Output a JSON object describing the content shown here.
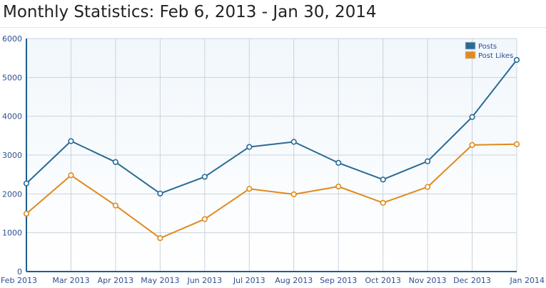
{
  "page": {
    "title": "Monthly Statistics: Feb 6, 2013 - Jan 30, 2014"
  },
  "chart_data": {
    "type": "line",
    "title": "",
    "xlabel": "",
    "ylabel": "",
    "categories": [
      "Feb 2013",
      "Mar 2013",
      "Apr 2013",
      "May 2013",
      "Jun 2013",
      "Jul 2013",
      "Aug 2013",
      "Sep 2013",
      "Oct 2013",
      "Nov 2013",
      "Dec 2013",
      "Jan 2014"
    ],
    "ylim": [
      0,
      6000
    ],
    "yticks": [
      0,
      1000,
      2000,
      3000,
      4000,
      5000,
      6000
    ],
    "grid": true,
    "legend_position": "top-right",
    "series": [
      {
        "name": "Posts",
        "color": "#2a6a95",
        "values": [
          2270,
          3360,
          2820,
          2010,
          2440,
          3210,
          3340,
          2800,
          2370,
          2840,
          3980,
          5450
        ]
      },
      {
        "name": "Post Likes",
        "color": "#e08a1e",
        "values": [
          1490,
          2480,
          1700,
          860,
          1350,
          2130,
          1990,
          2190,
          1770,
          2180,
          3260,
          3280
        ]
      }
    ]
  }
}
